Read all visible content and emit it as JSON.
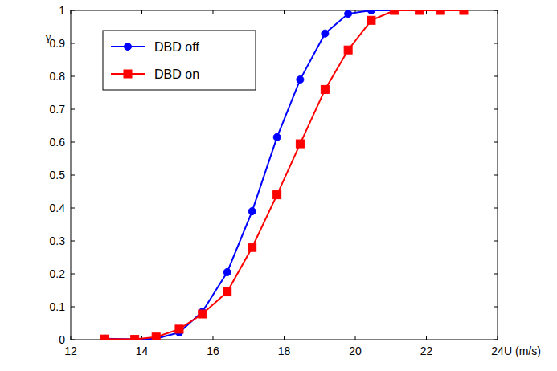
{
  "chart_data": {
    "type": "line",
    "x_label": "U (m/s)",
    "y_label": "γ",
    "x": [
      12.95,
      13.8,
      14.4,
      15.05,
      15.7,
      16.4,
      17.1,
      17.8,
      18.45,
      19.15,
      19.8,
      20.45,
      21.1,
      21.8,
      22.4,
      23.05
    ],
    "series": [
      {
        "name": "DBD off",
        "color": "#0000ff",
        "marker": "circle",
        "values": [
          0.003,
          0.001,
          0.003,
          0.022,
          0.085,
          0.205,
          0.39,
          0.615,
          0.79,
          0.93,
          0.99,
          1.0,
          1.0,
          1.0,
          1.0,
          1.0
        ]
      },
      {
        "name": "DBD on",
        "color": "#ff0000",
        "marker": "square",
        "values": [
          0.002,
          0.001,
          0.008,
          0.032,
          0.078,
          0.145,
          0.28,
          0.44,
          0.595,
          0.76,
          0.88,
          0.97,
          1.0,
          1.0,
          1.0,
          1.0
        ]
      }
    ],
    "xlim": [
      12,
      24
    ],
    "xticks": [
      12,
      14,
      16,
      18,
      20,
      22,
      24
    ],
    "ylim": [
      0,
      1
    ],
    "yticks": [
      0,
      0.1,
      0.2,
      0.3,
      0.4,
      0.5,
      0.6,
      0.7,
      0.8,
      0.9,
      1
    ],
    "grid": false,
    "legend": "upper left"
  }
}
